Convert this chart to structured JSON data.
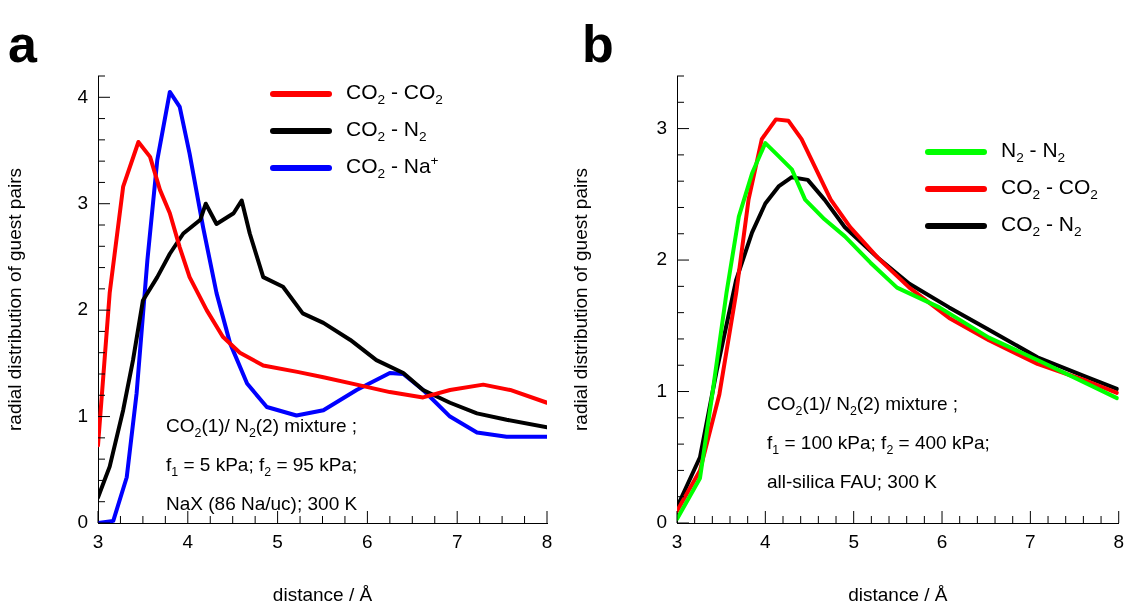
{
  "chart_data": [
    {
      "type": "line",
      "title": "a",
      "xlabel": "distance / Å",
      "ylabel": "radial distribution of guest pairs",
      "xlim": [
        3,
        8
      ],
      "ylim": [
        0,
        4.2
      ],
      "xticks": [
        3,
        {
          "value": 3.25,
          "label": null
        },
        {
          "value": 3.5,
          "label": null
        },
        {
          "value": 3.75,
          "label": null
        },
        4,
        {
          "value": 4.25,
          "label": null
        },
        {
          "value": 4.5,
          "label": null
        },
        {
          "value": 4.75,
          "label": null
        },
        5,
        {
          "value": 5.25,
          "label": null
        },
        {
          "value": 5.5,
          "label": null
        },
        {
          "value": 5.75,
          "label": null
        },
        6,
        {
          "value": 6.25,
          "label": null
        },
        {
          "value": 6.5,
          "label": null
        },
        {
          "value": 6.75,
          "label": null
        },
        7,
        {
          "value": 7.25,
          "label": null
        },
        {
          "value": 7.5,
          "label": null
        },
        {
          "value": 7.75,
          "label": null
        },
        8
      ],
      "yticks": [
        0,
        {
          "value": 0.2,
          "label": null
        },
        {
          "value": 0.4,
          "label": null
        },
        {
          "value": 0.6,
          "label": null
        },
        {
          "value": 0.8,
          "label": null
        },
        1,
        {
          "value": 1.2,
          "label": null
        },
        {
          "value": 1.4,
          "label": null
        },
        {
          "value": 1.6,
          "label": null
        },
        {
          "value": 1.8,
          "label": null
        },
        2,
        {
          "value": 2.2,
          "label": null
        },
        {
          "value": 2.4,
          "label": null
        },
        {
          "value": 2.6,
          "label": null
        },
        {
          "value": 2.8,
          "label": null
        },
        3,
        {
          "value": 3.2,
          "label": null
        },
        {
          "value": 3.4,
          "label": null
        },
        {
          "value": 3.6,
          "label": null
        },
        {
          "value": 3.8,
          "label": null
        },
        4,
        {
          "value": 4.2,
          "label": null
        }
      ],
      "grid": false,
      "legend": "top right",
      "marker": "none",
      "line_style": "solid",
      "annotations": [
        "CO$_{2}$(1)/ N$_{2}$(2) mixture ;",
        "f$_{1}$ = 5 kPa; f$_{2}$ = 95 kPa;",
        "NaX (86 Na/uc); 300 K"
      ],
      "series": [
        {
          "name": "CO$_{2}$ - CO$_{2}$",
          "color": "#ff0000",
          "x": [
            3,
            3.13,
            3.28,
            3.45,
            3.58,
            3.69,
            3.8,
            3.91,
            4.02,
            4.21,
            4.39,
            4.58,
            4.84,
            5.22,
            5.51,
            5.88,
            6.25,
            6.62,
            6.92,
            7.29,
            7.59,
            8
          ],
          "values": [
            0.73,
            2.16,
            3.16,
            3.58,
            3.44,
            3.13,
            2.91,
            2.59,
            2.31,
            2.0,
            1.75,
            1.6,
            1.48,
            1.42,
            1.37,
            1.3,
            1.23,
            1.18,
            1.25,
            1.3,
            1.25,
            1.13
          ]
        },
        {
          "name": "CO$_{2}$ - N$_{2}$",
          "color": "#000000",
          "x": [
            3,
            3.13,
            3.28,
            3.39,
            3.5,
            3.66,
            3.8,
            3.95,
            4.14,
            4.2,
            4.32,
            4.51,
            4.6,
            4.69,
            4.84,
            5.06,
            5.28,
            5.51,
            5.81,
            6.1,
            6.4,
            6.62,
            6.92,
            7.22,
            7.55,
            8
          ],
          "values": [
            0.24,
            0.53,
            1.06,
            1.53,
            2.09,
            2.31,
            2.53,
            2.72,
            2.85,
            3.0,
            2.81,
            2.91,
            3.03,
            2.72,
            2.31,
            2.22,
            1.97,
            1.88,
            1.72,
            1.53,
            1.41,
            1.25,
            1.13,
            1.03,
            0.97,
            0.9
          ]
        },
        {
          "name": "CO$_{2}$ - Na$^{+}$",
          "color": "#0000ff",
          "x": [
            3,
            3.17,
            3.32,
            3.43,
            3.55,
            3.66,
            3.8,
            3.91,
            4.02,
            4.17,
            4.32,
            4.47,
            4.66,
            4.88,
            5.21,
            5.51,
            5.88,
            6.25,
            6.4,
            6.62,
            6.92,
            7.22,
            7.55,
            8
          ],
          "values": [
            0,
            0.02,
            0.43,
            1.22,
            2.47,
            3.41,
            4.05,
            3.91,
            3.47,
            2.78,
            2.16,
            1.69,
            1.31,
            1.09,
            1.01,
            1.06,
            1.25,
            1.41,
            1.4,
            1.25,
            1.0,
            0.85,
            0.81,
            0.81
          ]
        }
      ]
    },
    {
      "type": "line",
      "title": "b",
      "xlabel": "distance / Å",
      "ylabel": "radial distribution of guest pairs",
      "xlim": [
        3,
        8
      ],
      "ylim": [
        0,
        3.4
      ],
      "xticks": [
        3,
        {
          "value": 3.2,
          "label": null
        },
        {
          "value": 3.4,
          "label": null
        },
        {
          "value": 3.6,
          "label": null
        },
        {
          "value": 3.8,
          "label": null
        },
        4,
        {
          "value": 4.2,
          "label": null
        },
        {
          "value": 4.4,
          "label": null
        },
        {
          "value": 4.6,
          "label": null
        },
        {
          "value": 4.8,
          "label": null
        },
        5,
        {
          "value": 5.2,
          "label": null
        },
        {
          "value": 5.4,
          "label": null
        },
        {
          "value": 5.6,
          "label": null
        },
        {
          "value": 5.8,
          "label": null
        },
        6,
        {
          "value": 6.2,
          "label": null
        },
        {
          "value": 6.4,
          "label": null
        },
        {
          "value": 6.6,
          "label": null
        },
        {
          "value": 6.8,
          "label": null
        },
        7,
        {
          "value": 7.2,
          "label": null
        },
        {
          "value": 7.4,
          "label": null
        },
        {
          "value": 7.6,
          "label": null
        },
        {
          "value": 7.8,
          "label": null
        },
        8
      ],
      "yticks": [
        0,
        {
          "value": 0.2,
          "label": null
        },
        {
          "value": 0.4,
          "label": null
        },
        {
          "value": 0.6,
          "label": null
        },
        {
          "value": 0.8,
          "label": null
        },
        1,
        {
          "value": 1.2,
          "label": null
        },
        {
          "value": 1.4,
          "label": null
        },
        {
          "value": 1.6,
          "label": null
        },
        {
          "value": 1.8,
          "label": null
        },
        2,
        {
          "value": 2.2,
          "label": null
        },
        {
          "value": 2.4,
          "label": null
        },
        {
          "value": 2.6,
          "label": null
        },
        {
          "value": 2.8,
          "label": null
        },
        3,
        {
          "value": 3.2,
          "label": null
        },
        {
          "value": 3.4,
          "label": null
        }
      ],
      "grid": false,
      "legend": "top right",
      "marker": "none",
      "line_style": "solid",
      "annotations": [
        "CO$_{2}$(1)/ N$_{2}$(2) mixture ;",
        "f$_{1}$ = 100 kPa; f$_{2}$ = 400 kPa;",
        "all-silica FAU; 300 K"
      ],
      "series": [
        {
          "name": "N$_{2}$ - N$_{2}$",
          "color": "#00ff00",
          "x": [
            3,
            3.26,
            3.4,
            3.56,
            3.7,
            3.85,
            4.0,
            4.15,
            4.3,
            4.45,
            4.67,
            4.9,
            5.19,
            5.49,
            5.97,
            6.53,
            7.08,
            7.64,
            7.98
          ],
          "values": [
            0.03,
            0.34,
            0.98,
            1.75,
            2.33,
            2.66,
            2.89,
            2.79,
            2.69,
            2.46,
            2.31,
            2.18,
            1.98,
            1.79,
            1.64,
            1.41,
            1.24,
            1.06,
            0.95
          ]
        },
        {
          "name": "CO$_{2}$ - CO$_{2}$",
          "color": "#ff0000",
          "x": [
            3,
            3.26,
            3.48,
            3.67,
            3.81,
            3.96,
            4.12,
            4.26,
            4.41,
            4.56,
            4.74,
            4.96,
            5.27,
            5.63,
            6.08,
            6.53,
            7.08,
            7.64,
            7.98
          ],
          "values": [
            0.09,
            0.4,
            0.98,
            1.75,
            2.46,
            2.92,
            3.07,
            3.06,
            2.92,
            2.71,
            2.46,
            2.25,
            2.02,
            1.79,
            1.56,
            1.39,
            1.21,
            1.08,
            0.99
          ]
        },
        {
          "name": "CO$_{2}$ - N$_{2}$",
          "color": "#000000",
          "x": [
            3,
            3.26,
            3.45,
            3.67,
            3.85,
            4.0,
            4.15,
            4.3,
            4.48,
            4.67,
            4.9,
            5.27,
            5.63,
            6.08,
            6.53,
            7.08,
            7.64,
            7.98
          ],
          "values": [
            0.12,
            0.5,
            1.16,
            1.85,
            2.21,
            2.43,
            2.56,
            2.63,
            2.61,
            2.46,
            2.25,
            2.02,
            1.82,
            1.64,
            1.47,
            1.26,
            1.11,
            1.02
          ]
        }
      ]
    }
  ]
}
